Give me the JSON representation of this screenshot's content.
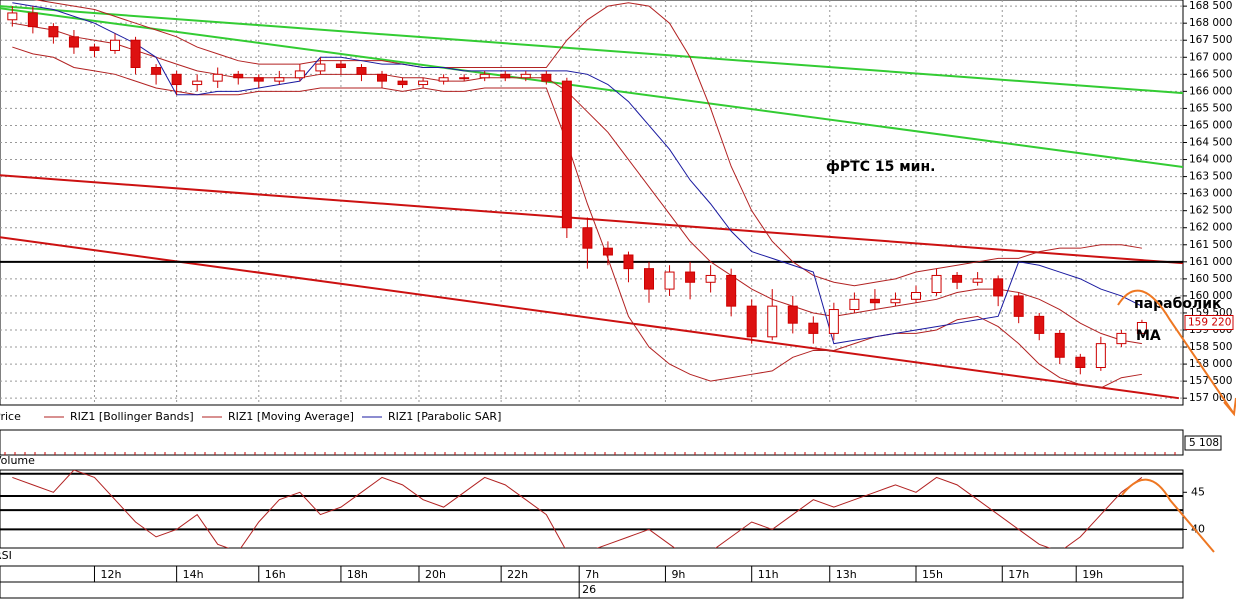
{
  "chart_data": [
    {
      "type": "candlestick",
      "annotation": "фРТС   15 мин.",
      "label_parabolic": "параболик",
      "label_ma": "MA",
      "legend_price": "Price",
      "up_color": "#ffffff",
      "down_color": "#dd1111",
      "edge_color": "#cc0000",
      "x": [
        0,
        0.5,
        1,
        1.5,
        2,
        2.5,
        3,
        3.5,
        4,
        4.5,
        5,
        5.5,
        6,
        6.5,
        7,
        7.5,
        8,
        8.5,
        9,
        9.5,
        10,
        10.5,
        11,
        11.5,
        12,
        12.5,
        13,
        13.5,
        14,
        14.5,
        15,
        15.5,
        16,
        16.5,
        17,
        17.5,
        18,
        18.5,
        19,
        19.5,
        20,
        20.5,
        21,
        21.5,
        22,
        22.5,
        23,
        23.5,
        24,
        24.5,
        25,
        25.5,
        26,
        26.5,
        27,
        27.5
      ],
      "open": [
        168100,
        168300,
        167900,
        167600,
        167300,
        167200,
        167500,
        166700,
        166500,
        166200,
        166300,
        166500,
        166400,
        166300,
        166400,
        166600,
        166800,
        166700,
        166500,
        166300,
        166200,
        166300,
        166400,
        166400,
        166500,
        166400,
        166500,
        166300,
        162000,
        161400,
        161200,
        160800,
        160200,
        160700,
        160400,
        160600,
        159700,
        158800,
        159700,
        159200,
        158900,
        159600,
        159900,
        159800,
        159900,
        160100,
        160600,
        160400,
        160500,
        160000,
        159400,
        158900,
        158200,
        157900,
        158600,
        158900
      ],
      "high": [
        168500,
        168500,
        168000,
        167800,
        167400,
        167700,
        167600,
        166800,
        166600,
        166500,
        166700,
        166600,
        166500,
        166600,
        166800,
        167000,
        166900,
        166800,
        166600,
        166400,
        166400,
        166500,
        166500,
        166600,
        166600,
        166600,
        166600,
        166400,
        162300,
        161600,
        161300,
        161000,
        160900,
        161000,
        160900,
        160800,
        159900,
        160200,
        160000,
        159400,
        159800,
        160100,
        160200,
        160100,
        160300,
        160800,
        160700,
        160700,
        160600,
        160100,
        159500,
        159000,
        158300,
        158800,
        159000,
        159300
      ],
      "low": [
        167900,
        167700,
        167400,
        167100,
        167000,
        167100,
        166500,
        166200,
        165900,
        166000,
        166100,
        166200,
        166100,
        166200,
        166300,
        166500,
        166500,
        166300,
        166100,
        166100,
        166100,
        166200,
        166300,
        166300,
        166300,
        166300,
        166200,
        161700,
        160800,
        160900,
        160400,
        159800,
        160000,
        159900,
        160100,
        159400,
        158600,
        158700,
        158900,
        158600,
        158700,
        159500,
        159600,
        159700,
        159800,
        160000,
        160200,
        160300,
        159700,
        159200,
        158700,
        158000,
        157700,
        157800,
        158500,
        158800
      ],
      "close": [
        168300,
        167900,
        167600,
        167300,
        167200,
        167500,
        166700,
        166500,
        166200,
        166300,
        166500,
        166400,
        166300,
        166400,
        166600,
        166800,
        166700,
        166500,
        166300,
        166200,
        166300,
        166400,
        166400,
        166500,
        166400,
        166500,
        166300,
        162000,
        161400,
        161200,
        160800,
        160200,
        160700,
        160400,
        160600,
        159700,
        158800,
        159700,
        159200,
        158900,
        159600,
        159900,
        159800,
        159900,
        160100,
        160600,
        160400,
        160500,
        160000,
        159400,
        158900,
        158200,
        157900,
        158600,
        158900,
        159220
      ],
      "last_price_label": "159 220",
      "bands": {
        "name": "RIZ1 [Bollinger Bands]",
        "color": "#b22222",
        "upper": [
          168700,
          168700,
          168600,
          168500,
          168400,
          168200,
          168000,
          167800,
          167600,
          167300,
          167100,
          166900,
          166800,
          166800,
          166800,
          166900,
          166900,
          166900,
          166900,
          166800,
          166700,
          166700,
          166700,
          166700,
          166700,
          166700,
          166700,
          167500,
          168100,
          168500,
          168600,
          168500,
          168000,
          167000,
          165500,
          163800,
          162500,
          161600,
          161000,
          160600,
          160400,
          160300,
          160400,
          160500,
          160700,
          160800,
          160900,
          161000,
          161100,
          161100,
          161300,
          161400,
          161400,
          161500,
          161500,
          161400
        ],
        "lower": [
          167300,
          167100,
          167000,
          166700,
          166600,
          166500,
          166300,
          166100,
          166000,
          165900,
          165900,
          165900,
          166000,
          166000,
          166000,
          166100,
          166100,
          166100,
          166100,
          166000,
          166100,
          166000,
          166000,
          166100,
          166100,
          166100,
          166100,
          164500,
          162700,
          161100,
          159400,
          158500,
          158000,
          157700,
          157500,
          157600,
          157700,
          157800,
          158200,
          158400,
          158400,
          158600,
          158800,
          158900,
          158900,
          159000,
          159300,
          159400,
          159100,
          158600,
          158000,
          157600,
          157400,
          157300,
          157600,
          157700
        ]
      },
      "series": [
        {
          "name": "RIZ1 [Moving Average]",
          "color": "#b22222",
          "values": [
            168000,
            167900,
            167800,
            167600,
            167500,
            167400,
            167200,
            167000,
            166800,
            166600,
            166500,
            166400,
            166400,
            166400,
            166400,
            166500,
            166500,
            166500,
            166500,
            166400,
            166400,
            166300,
            166300,
            166400,
            166400,
            166400,
            166400,
            166000,
            165400,
            164800,
            164000,
            163200,
            162400,
            161600,
            161000,
            160600,
            160200,
            159900,
            159700,
            159500,
            159400,
            159500,
            159600,
            159700,
            159800,
            159900,
            160100,
            160200,
            160200,
            160100,
            159900,
            159600,
            159200,
            158900,
            158700,
            158600
          ]
        },
        {
          "name": "RIZ1 [Parabolic SAR]",
          "color": "#1a1aa0",
          "values": [
            168600,
            168500,
            168400,
            168200,
            168000,
            167700,
            167400,
            167000,
            165900,
            165900,
            166000,
            166000,
            166100,
            166200,
            166300,
            167000,
            167000,
            166900,
            166800,
            166800,
            166700,
            166700,
            166600,
            166600,
            166600,
            166600,
            166600,
            166600,
            166500,
            166200,
            165700,
            165000,
            164300,
            163400,
            162700,
            161900,
            161300,
            161100,
            160900,
            160700,
            158600,
            158700,
            158800,
            158900,
            159000,
            159100,
            159200,
            159300,
            159400,
            161000,
            160900,
            160700,
            160500,
            160200,
            160000,
            159700
          ]
        }
      ],
      "trend_lines": [
        {
          "color": "#33cc33",
          "x": [
            -0.3,
            28.5
          ],
          "y": [
            168500,
            165950
          ]
        },
        {
          "color": "#33cc33",
          "x": [
            -0.3,
            28.5
          ],
          "y": [
            168440,
            163780
          ]
        },
        {
          "color": "#cc1111",
          "x": [
            -0.3,
            28.5
          ],
          "y": [
            163540,
            160960
          ]
        },
        {
          "color": "#cc1111",
          "x": [
            -0.3,
            28.4
          ],
          "y": [
            161720,
            157000
          ]
        },
        {
          "color": "#000000",
          "x": [
            -0.3,
            28.5
          ],
          "y": [
            161000,
            161000
          ]
        }
      ],
      "xlim": [
        -0.3,
        28.5
      ],
      "xticks": [
        {
          "value": 2,
          "label": "12h"
        },
        {
          "value": 4,
          "label": "14h"
        },
        {
          "value": 6,
          "label": "16h"
        },
        {
          "value": 8,
          "label": "18h"
        },
        {
          "value": 9.9,
          "label": "20h"
        },
        {
          "value": 11.9,
          "label": "22h"
        },
        {
          "value": 13.8,
          "label": "7h"
        },
        {
          "value": 15.9,
          "label": "9h"
        },
        {
          "value": 18,
          "label": "11h"
        },
        {
          "value": 19.9,
          "label": "13h"
        },
        {
          "value": 22,
          "label": "15h"
        },
        {
          "value": 24.1,
          "label": "17h"
        },
        {
          "value": 25.9,
          "label": "19h"
        }
      ],
      "date_label": "26",
      "ylim": [
        156800,
        168680
      ],
      "yticks": [
        {
          "value": 157000,
          "label": "157 000"
        },
        {
          "value": 157500,
          "label": "157 500"
        },
        {
          "value": 158000,
          "label": "158 000"
        },
        {
          "value": 158500,
          "label": "158 500"
        },
        {
          "value": 159000,
          "label": "159 000"
        },
        {
          "value": 159500,
          "label": "159 500"
        },
        {
          "value": 160000,
          "label": "160 000"
        },
        {
          "value": 160500,
          "label": "160 500"
        },
        {
          "value": 161000,
          "label": "161 000"
        },
        {
          "value": 161500,
          "label": "161 500"
        },
        {
          "value": 162000,
          "label": "162 000"
        },
        {
          "value": 162500,
          "label": "162 500"
        },
        {
          "value": 163000,
          "label": "163 000"
        },
        {
          "value": 163500,
          "label": "163 500"
        },
        {
          "value": 164000,
          "label": "164 000"
        },
        {
          "value": 164500,
          "label": "164 500"
        },
        {
          "value": 165000,
          "label": "165 000"
        },
        {
          "value": 165500,
          "label": "165 500"
        },
        {
          "value": 166000,
          "label": "166 000"
        },
        {
          "value": 166500,
          "label": "166 500"
        },
        {
          "value": 167000,
          "label": "167 000"
        },
        {
          "value": 167500,
          "label": "167 500"
        },
        {
          "value": 168000,
          "label": "168 000"
        },
        {
          "value": 168500,
          "label": "168 500"
        }
      ],
      "grid": true
    },
    {
      "type": "volume",
      "legend": "Volume",
      "values": [
        5108
      ],
      "value_labels": [
        "5 108"
      ]
    },
    {
      "type": "line",
      "legend": "RSI",
      "color": "#b22222",
      "values": [
        47,
        46,
        45,
        48,
        47,
        44,
        41,
        39,
        40,
        42,
        38,
        37,
        41,
        44,
        45,
        42,
        43,
        45,
        47,
        46,
        44,
        43,
        45,
        47,
        46,
        44,
        42,
        37,
        37,
        38,
        39,
        40,
        38,
        36,
        37,
        39,
        41,
        40,
        42,
        44,
        43,
        44,
        45,
        46,
        45,
        47,
        46,
        44,
        42,
        40,
        38,
        37,
        39,
        42,
        45,
        47
      ],
      "levels": [
        47.5,
        44.5,
        42.6,
        40
      ],
      "ylim": [
        37.5,
        48
      ],
      "yticks": [
        40,
        45
      ]
    }
  ]
}
